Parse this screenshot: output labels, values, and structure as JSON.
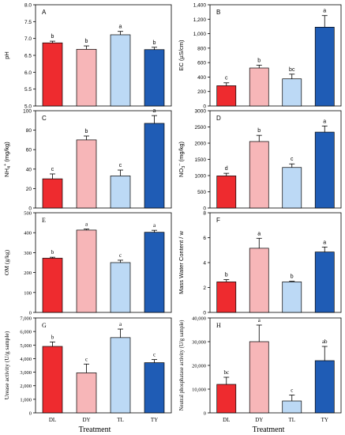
{
  "colors": {
    "DL": "#ee2b2f",
    "DY": "#f7b6b8",
    "TL": "#bcd9f5",
    "TY": "#1f5cb5",
    "edge": "#000000"
  },
  "shared_xlabel": "Treatment",
  "chart_data": [
    {
      "type": "bar",
      "panel_label": "A",
      "title": "",
      "xlabel": "",
      "ylabel": "pH",
      "categories": [
        "DL",
        "DY",
        "TL",
        "TY"
      ],
      "values": [
        6.87,
        6.68,
        7.11,
        6.67
      ],
      "errors": [
        0.05,
        0.1,
        0.1,
        0.07
      ],
      "letters": [
        "b",
        "b",
        "a",
        "b"
      ],
      "ylim": [
        5.0,
        8.0
      ],
      "yticks": [
        "5.0",
        "5.5",
        "6.0",
        "6.5",
        "7.0",
        "7.5",
        "8.0"
      ],
      "ytick_values": [
        5.0,
        5.5,
        6.0,
        6.5,
        7.0,
        7.5,
        8.0
      ],
      "font": "sans"
    },
    {
      "type": "bar",
      "panel_label": "B",
      "title": "",
      "xlabel": "",
      "ylabel": "EC (µS/cm)",
      "categories": [
        "DL",
        "DY",
        "TL",
        "TY"
      ],
      "values": [
        280,
        525,
        375,
        1090
      ],
      "errors": [
        40,
        40,
        65,
        160
      ],
      "letters": [
        "c",
        "b",
        "bc",
        "a"
      ],
      "ylim": [
        0,
        1400
      ],
      "yticks": [
        "0",
        "200",
        "400",
        "600",
        "800",
        "1,000",
        "1,200",
        "1,400"
      ],
      "ytick_values": [
        0,
        200,
        400,
        600,
        800,
        1000,
        1200,
        1400
      ],
      "font": "sans"
    },
    {
      "type": "bar",
      "panel_label": "C",
      "title": "",
      "xlabel": "",
      "ylabel": "NH4+ (mg/kg)",
      "ylabel_parts": {
        "main": "NH",
        "sub": "4",
        "sup": "+",
        "rest": " (mg/kg)"
      },
      "categories": [
        "DL",
        "DY",
        "TL",
        "TY"
      ],
      "values": [
        30,
        70,
        33,
        87
      ],
      "errors": [
        5,
        4,
        6,
        8
      ],
      "letters": [
        "c",
        "b",
        "c",
        "a"
      ],
      "ylim": [
        0,
        100
      ],
      "yticks": [
        "0",
        "20",
        "40",
        "60",
        "80",
        "100"
      ],
      "ytick_values": [
        0,
        20,
        40,
        60,
        80,
        100
      ],
      "font": "sans"
    },
    {
      "type": "bar",
      "panel_label": "D",
      "title": "",
      "xlabel": "",
      "ylabel": "NO3- (mg/kg)",
      "ylabel_parts": {
        "main": "NO",
        "sub": "3",
        "sup": "−",
        "rest": " (mg/kg)"
      },
      "categories": [
        "DL",
        "DY",
        "TL",
        "TY"
      ],
      "values": [
        990,
        2050,
        1250,
        2340
      ],
      "errors": [
        80,
        190,
        110,
        190
      ],
      "letters": [
        "d",
        "b",
        "c",
        "a"
      ],
      "ylim": [
        0,
        3000
      ],
      "yticks": [
        "0",
        "500",
        "1000",
        "1500",
        "2000",
        "2500",
        "3000"
      ],
      "ytick_values": [
        0,
        500,
        1000,
        1500,
        2000,
        2500,
        3000
      ],
      "font": "sans"
    },
    {
      "type": "bar",
      "panel_label": "E",
      "title": "",
      "xlabel": "",
      "ylabel": "OM (g/kg)",
      "categories": [
        "DL",
        "DY",
        "TL",
        "TY"
      ],
      "values": [
        272,
        413,
        250,
        402
      ],
      "errors": [
        5,
        5,
        12,
        10
      ],
      "letters": [
        "b",
        "a",
        "c",
        "a"
      ],
      "ylim": [
        0,
        500
      ],
      "yticks": [
        "0",
        "100",
        "200",
        "300",
        "400",
        "500"
      ],
      "ytick_values": [
        0,
        100,
        200,
        300,
        400,
        500
      ],
      "font": "serif"
    },
    {
      "type": "bar",
      "panel_label": "F",
      "title": "",
      "xlabel": "",
      "ylabel": "Mass Water Content / w",
      "categories": [
        "DL",
        "DY",
        "TL",
        "TY"
      ],
      "values": [
        2.45,
        5.15,
        2.45,
        4.85
      ],
      "errors": [
        0.18,
        0.8,
        0.05,
        0.4
      ],
      "letters": [
        "b",
        "a",
        "b",
        "a"
      ],
      "ylim": [
        0,
        8
      ],
      "yticks": [
        "0",
        "2",
        "4",
        "6",
        "8"
      ],
      "ytick_values": [
        0,
        2,
        4,
        6,
        8
      ],
      "font": "sans"
    },
    {
      "type": "bar",
      "panel_label": "G",
      "title": "",
      "xlabel": "Treatment",
      "ylabel": "Urease activity (U/g sample)",
      "categories": [
        "DL",
        "DY",
        "TL",
        "TY"
      ],
      "values": [
        4900,
        2950,
        5550,
        3700
      ],
      "errors": [
        330,
        650,
        630,
        230
      ],
      "letters": [
        "b",
        "c",
        "a",
        "c"
      ],
      "ylim": [
        0,
        7000
      ],
      "yticks": [
        "0",
        "1,000",
        "2,000",
        "3,000",
        "4,000",
        "5,000",
        "6,000",
        "7,000"
      ],
      "ytick_values": [
        0,
        1000,
        2000,
        3000,
        4000,
        5000,
        6000,
        7000
      ],
      "font": "serif"
    },
    {
      "type": "bar",
      "panel_label": "H",
      "title": "",
      "xlabel": "Treatment",
      "ylabel": "Neutral phosphatase activity (U/g sample)",
      "categories": [
        "DL",
        "DY",
        "TL",
        "TY"
      ],
      "values": [
        12000,
        30000,
        5000,
        22000
      ],
      "errors": [
        3000,
        7000,
        2500,
        6000
      ],
      "letters": [
        "bc",
        "a",
        "c",
        "ab"
      ],
      "ylim": [
        0,
        40000
      ],
      "yticks": [
        "0",
        "10,000",
        "20,000",
        "30,000",
        "40,000"
      ],
      "ytick_values": [
        0,
        10000,
        20000,
        30000,
        40000
      ],
      "font": "serif"
    }
  ]
}
